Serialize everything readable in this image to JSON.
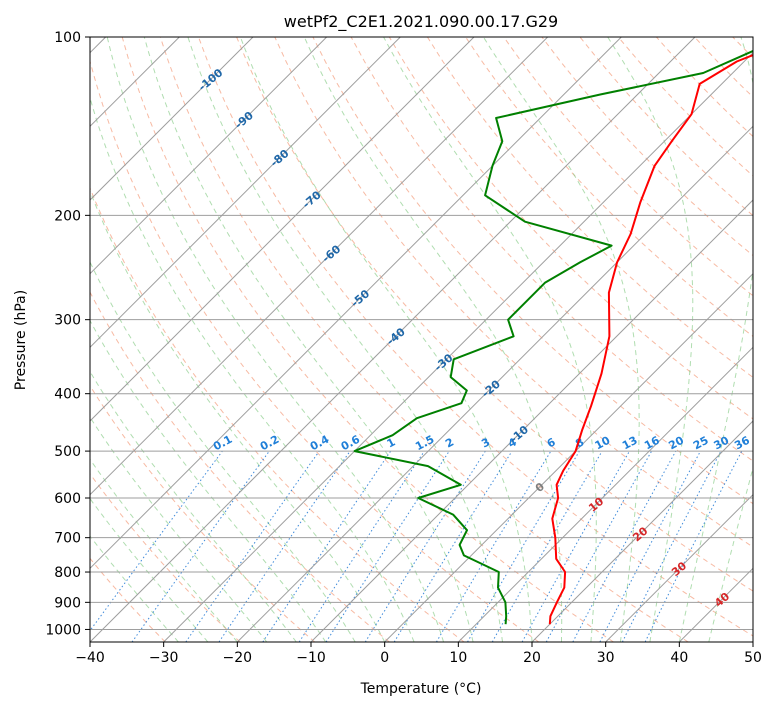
{
  "chart_data": {
    "type": "line",
    "title": "wetPf2_C2E1.2021.090.00.17.G29",
    "xlabel": "Temperature (°C)",
    "ylabel": "Pressure (hPa)",
    "xlim": [
      -40,
      50
    ],
    "ylim": [
      1050,
      100
    ],
    "y_scale": "log",
    "grid": true,
    "x_ticks": [
      -40,
      -30,
      -20,
      -10,
      0,
      10,
      20,
      30,
      40,
      50
    ],
    "y_ticks": [
      100,
      200,
      300,
      400,
      500,
      600,
      700,
      800,
      900,
      1000
    ],
    "series": [
      {
        "role": "temperature",
        "color": "#ff0000",
        "points": [
          [
            -26,
            100
          ],
          [
            -31,
            110
          ],
          [
            -33,
            120
          ],
          [
            -30,
            135
          ],
          [
            -29,
            150
          ],
          [
            -28,
            165
          ],
          [
            -25,
            190
          ],
          [
            -22,
            215
          ],
          [
            -20,
            240
          ],
          [
            -17,
            270
          ],
          [
            -11,
            320
          ],
          [
            -7,
            370
          ],
          [
            -4,
            420
          ],
          [
            -2,
            460
          ],
          [
            0,
            500
          ],
          [
            1,
            540
          ],
          [
            2,
            570
          ],
          [
            4,
            600
          ],
          [
            6,
            650
          ],
          [
            9,
            700
          ],
          [
            12,
            760
          ],
          [
            15,
            800
          ],
          [
            17,
            850
          ],
          [
            18,
            900
          ],
          [
            19,
            950
          ],
          [
            20,
            980
          ]
        ]
      },
      {
        "role": "dewpoint",
        "color": "#008000",
        "points": [
          [
            -29,
            100
          ],
          [
            -30,
            105
          ],
          [
            -34,
            115
          ],
          [
            -45,
            125
          ],
          [
            -56,
            137
          ],
          [
            -52,
            150
          ],
          [
            -50,
            165
          ],
          [
            -47,
            185
          ],
          [
            -38,
            205
          ],
          [
            -23,
            225
          ],
          [
            -25,
            240
          ],
          [
            -27,
            260
          ],
          [
            -27,
            300
          ],
          [
            -24,
            320
          ],
          [
            -29,
            350
          ],
          [
            -27,
            375
          ],
          [
            -23,
            395
          ],
          [
            -22,
            415
          ],
          [
            -26,
            440
          ],
          [
            -27,
            470
          ],
          [
            -30,
            500
          ],
          [
            -18,
            530
          ],
          [
            -11,
            570
          ],
          [
            -15,
            600
          ],
          [
            -8,
            640
          ],
          [
            -4,
            680
          ],
          [
            -3,
            720
          ],
          [
            -1,
            750
          ],
          [
            6,
            800
          ],
          [
            8,
            850
          ],
          [
            11,
            900
          ],
          [
            13,
            950
          ],
          [
            14,
            980
          ]
        ]
      }
    ],
    "isotherm_labels": [
      "-100",
      "-90",
      "-80",
      "-70",
      "-60",
      "-50",
      "-40",
      "-30",
      "-20",
      "-10",
      "0",
      "10",
      "20",
      "30",
      "40"
    ],
    "mixing_ratio_labels": [
      "0.1",
      "0.2",
      "0.4",
      "0.6",
      "1",
      "1.5",
      "2",
      "3",
      "4",
      "6",
      "8",
      "10",
      "13",
      "16",
      "20",
      "25",
      "30",
      "36"
    ]
  }
}
